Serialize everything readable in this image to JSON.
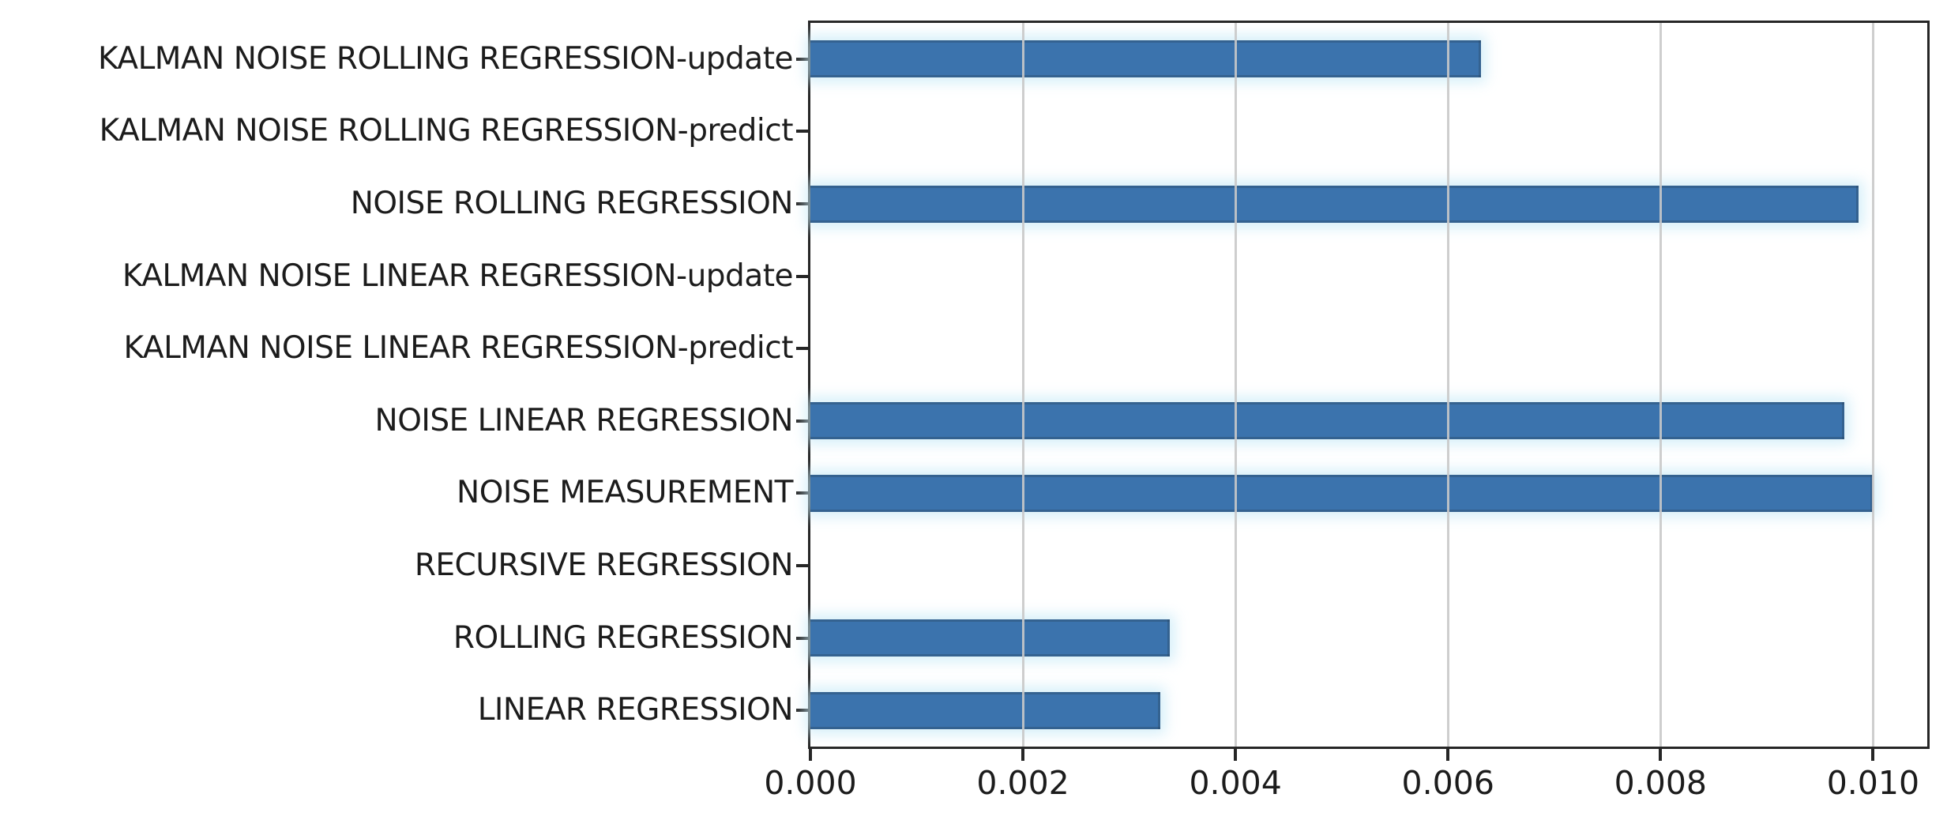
{
  "chart_data": {
    "type": "bar",
    "orientation": "horizontal",
    "title": "",
    "xlabel": "",
    "ylabel": "",
    "categories": [
      "KALMAN NOISE ROLLING REGRESSION-update",
      "KALMAN NOISE ROLLING REGRESSION-predict",
      "NOISE ROLLING REGRESSION",
      "KALMAN NOISE LINEAR REGRESSION-update",
      "KALMAN NOISE LINEAR REGRESSION-predict",
      "NOISE LINEAR REGRESSION",
      "NOISE MEASUREMENT",
      "RECURSIVE REGRESSION",
      "ROLLING REGRESSION",
      "LINEAR REGRESSION"
    ],
    "values": [
      0.00631,
      0,
      0.00986,
      0,
      0,
      0.00973,
      0.01,
      0,
      0.00338,
      0.00329
    ],
    "xlim": [
      0,
      0.01051
    ],
    "xticks": {
      "values": [
        0,
        0.002,
        0.004,
        0.006,
        0.008,
        0.01
      ],
      "labels": [
        "0.000",
        "0.002",
        "0.004",
        "0.006",
        "0.008",
        "0.010"
      ]
    },
    "grid": "vertical gridlines at x ticks, drawn above bars",
    "legend": "none",
    "bar_height_ratio": 0.51
  },
  "colors": {
    "bar": "#3b73ad",
    "grid": "#c9c9c9",
    "spine": "#262626",
    "tick_label": "#1c1c1c",
    "category_label": "#1c1c1c",
    "background": "#ffffff"
  }
}
